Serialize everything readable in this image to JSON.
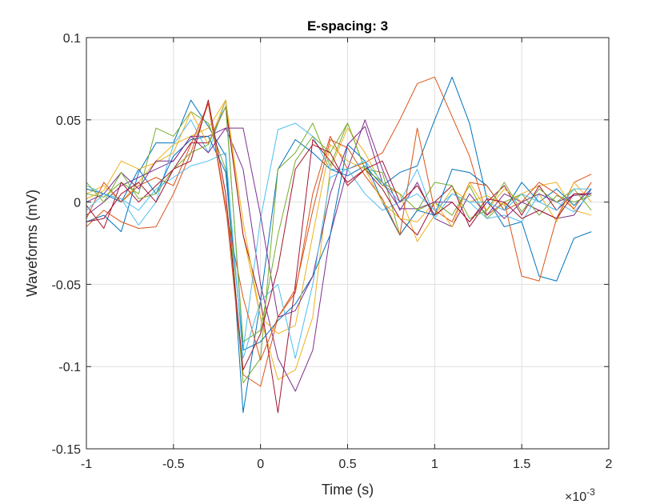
{
  "chart_data": {
    "type": "line",
    "title": "E-spacing: 3",
    "xlabel": "Time (s)",
    "ylabel": "Waveforms (mV)",
    "x_exponent_label": "×10",
    "x_exponent_power": "-3",
    "xlim": [
      -1,
      2
    ],
    "ylim": [
      -0.15,
      0.1
    ],
    "xticks": [
      -1,
      -0.5,
      0,
      0.5,
      1,
      1.5,
      2
    ],
    "xtick_labels": [
      "-1",
      "-0.5",
      "0",
      "0.5",
      "1",
      "1.5",
      "2"
    ],
    "yticks": [
      -0.15,
      -0.1,
      -0.05,
      0,
      0.05,
      0.1
    ],
    "ytick_labels": [
      "-0.15",
      "-0.1",
      "-0.05",
      "0",
      "0.05",
      "0.1"
    ],
    "grid": true,
    "x_units_scale": 0.001,
    "x": [
      -1.0,
      -0.9,
      -0.8,
      -0.7,
      -0.6,
      -0.5,
      -0.4,
      -0.3,
      -0.2,
      -0.1,
      0.0,
      0.1,
      0.2,
      0.3,
      0.4,
      0.5,
      0.6,
      0.7,
      0.8,
      0.9,
      1.0,
      1.1,
      1.2,
      1.3,
      1.4,
      1.5,
      1.6,
      1.7,
      1.8,
      1.9
    ],
    "series": [
      {
        "color": "#0072BD",
        "values": [
          -0.012,
          -0.008,
          -0.018,
          0.018,
          0.036,
          0.036,
          0.062,
          0.046,
          0.028,
          -0.128,
          -0.06,
          0.02,
          0.038,
          0.03,
          0.02,
          0.016,
          0.022,
          0.01,
          0.018,
          0.022,
          0.05,
          0.076,
          0.048,
          0.002,
          -0.015,
          -0.012,
          -0.045,
          -0.048,
          -0.022,
          -0.018
        ]
      },
      {
        "color": "#D95319",
        "values": [
          -0.015,
          -0.005,
          -0.012,
          -0.016,
          -0.015,
          0.005,
          0.03,
          0.06,
          -0.002,
          -0.105,
          -0.112,
          -0.07,
          -0.055,
          0.005,
          0.04,
          0.02,
          0.024,
          0.03,
          0.05,
          0.072,
          0.076,
          0.052,
          0.028,
          -0.008,
          0.0,
          -0.045,
          -0.048,
          -0.01,
          0.012,
          0.017
        ]
      },
      {
        "color": "#EDB120",
        "values": [
          0.005,
          0.01,
          0.0,
          0.012,
          0.025,
          0.035,
          0.04,
          0.045,
          0.062,
          -0.02,
          -0.07,
          -0.108,
          -0.102,
          -0.07,
          0.02,
          0.045,
          0.03,
          0.01,
          0.005,
          -0.024,
          -0.008,
          0.008,
          0.0,
          0.004,
          -0.002,
          0.005,
          0.01,
          0.012,
          -0.005,
          -0.008
        ]
      },
      {
        "color": "#7E2F8E",
        "values": [
          -0.008,
          0.0,
          0.01,
          0.015,
          0.02,
          0.025,
          0.04,
          0.04,
          0.045,
          0.02,
          -0.05,
          -0.095,
          -0.115,
          -0.09,
          -0.02,
          0.02,
          0.05,
          0.02,
          -0.005,
          0.012,
          -0.01,
          -0.015,
          0.005,
          -0.008,
          0.005,
          0.0,
          -0.005,
          -0.01,
          -0.008,
          0.008
        ]
      },
      {
        "color": "#77AC30",
        "values": [
          0.005,
          0.003,
          0.012,
          0.005,
          0.045,
          0.04,
          0.055,
          0.048,
          0.02,
          -0.11,
          -0.095,
          0.02,
          0.03,
          0.048,
          0.022,
          0.048,
          0.02,
          0.018,
          -0.02,
          -0.005,
          0.0,
          -0.008,
          0.01,
          -0.01,
          0.0,
          0.005,
          -0.008,
          0.004,
          0.0,
          0.004
        ]
      },
      {
        "color": "#4DBEEE",
        "values": [
          0.01,
          0.005,
          0.002,
          -0.014,
          0.0,
          0.035,
          0.05,
          0.03,
          0.062,
          -0.09,
          -0.01,
          0.044,
          0.048,
          0.04,
          0.02,
          0.02,
          0.005,
          -0.005,
          0.0,
          0.02,
          -0.01,
          0.005,
          0.0,
          -0.01,
          -0.008,
          -0.012,
          0.005,
          0.0,
          -0.006,
          0.006
        ]
      },
      {
        "color": "#A2142F",
        "values": [
          -0.002,
          -0.016,
          0.012,
          0.0,
          0.01,
          0.02,
          0.036,
          0.036,
          0.058,
          -0.02,
          -0.06,
          -0.128,
          -0.05,
          0.038,
          0.025,
          0.012,
          0.02,
          0.008,
          -0.01,
          -0.02,
          0.0,
          0.01,
          -0.015,
          0.0,
          0.01,
          -0.008,
          0.01,
          -0.005,
          0.005,
          0.005
        ]
      },
      {
        "color": "#0072BD",
        "values": [
          0.008,
          0.005,
          0.0,
          0.02,
          0.005,
          0.028,
          0.038,
          0.04,
          0.018,
          -0.09,
          -0.085,
          -0.072,
          -0.062,
          -0.045,
          -0.02,
          0.035,
          0.025,
          0.0,
          -0.02,
          -0.005,
          -0.008,
          0.02,
          0.018,
          0.01,
          -0.005,
          0.012,
          0.0,
          0.008,
          -0.002,
          0.008
        ]
      },
      {
        "color": "#D95319",
        "values": [
          -0.01,
          0.012,
          0.0,
          0.01,
          0.015,
          0.01,
          0.035,
          0.06,
          -0.005,
          -0.058,
          -0.096,
          -0.07,
          -0.053,
          -0.005,
          0.038,
          0.033,
          0.016,
          0.002,
          -0.02,
          0.045,
          -0.005,
          -0.012,
          0.012,
          0.01,
          -0.005,
          0.0,
          0.012,
          0.005,
          -0.004,
          0.012
        ]
      },
      {
        "color": "#EDB120",
        "values": [
          0.002,
          0.007,
          0.025,
          0.02,
          0.024,
          0.03,
          0.055,
          0.035,
          0.062,
          -0.012,
          -0.07,
          -0.08,
          -0.075,
          -0.02,
          0.035,
          0.025,
          0.02,
          0.0,
          -0.01,
          -0.012,
          0.0,
          -0.015,
          0.012,
          -0.005,
          0.008,
          0.0,
          0.005,
          -0.012,
          0.012,
          0.0
        ]
      },
      {
        "color": "#7E2F8E",
        "values": [
          0.0,
          0.005,
          0.018,
          0.008,
          0.025,
          0.025,
          0.04,
          0.03,
          0.045,
          0.045,
          -0.008,
          -0.07,
          -0.066,
          -0.045,
          0.005,
          0.035,
          0.046,
          0.012,
          -0.004,
          -0.004,
          0.0,
          0.0,
          -0.012,
          0.0,
          -0.01,
          0.0,
          0.005,
          0.0,
          0.004,
          0.005
        ]
      },
      {
        "color": "#77AC30",
        "values": [
          0.012,
          0.0,
          0.018,
          0.002,
          0.005,
          0.02,
          0.03,
          0.035,
          0.058,
          -0.085,
          -0.078,
          -0.02,
          0.025,
          0.04,
          0.03,
          0.048,
          0.02,
          0.012,
          0.005,
          -0.005,
          0.012,
          0.01,
          -0.01,
          -0.005,
          0.012,
          -0.006,
          0.008,
          0.0,
          0.008,
          -0.005
        ]
      },
      {
        "color": "#4DBEEE",
        "values": [
          -0.005,
          0.005,
          0.002,
          -0.005,
          0.008,
          0.015,
          0.022,
          0.025,
          0.03,
          -0.095,
          -0.06,
          -0.05,
          -0.095,
          -0.05,
          0.015,
          0.02,
          0.025,
          0.012,
          0.0,
          0.005,
          -0.005,
          0.005,
          0.0,
          0.0,
          -0.005,
          0.005,
          0.0,
          -0.005,
          0.008,
          0.008
        ]
      },
      {
        "color": "#A2142F",
        "values": [
          -0.012,
          -0.01,
          0.005,
          0.012,
          0.0,
          0.02,
          0.025,
          0.062,
          0.005,
          -0.102,
          -0.08,
          -0.04,
          0.02,
          0.035,
          0.03,
          0.01,
          0.02,
          0.025,
          0.0,
          0.01,
          -0.008,
          0.0,
          -0.012,
          0.002,
          0.0,
          -0.01,
          -0.005,
          -0.01,
          0.005,
          0.005
        ]
      }
    ]
  }
}
